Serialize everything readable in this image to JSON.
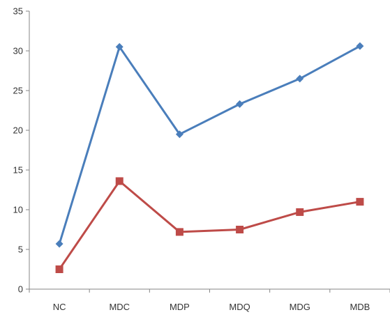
{
  "chart_data": {
    "type": "line",
    "categories": [
      "NC",
      "MDC",
      "MDP",
      "MDQ",
      "MDG",
      "MDB"
    ],
    "series": [
      {
        "values": [
          5.7,
          30.5,
          19.5,
          23.3,
          26.5,
          30.6
        ],
        "color": "#4A7EBB",
        "marker": "diamond"
      },
      {
        "values": [
          2.5,
          13.6,
          7.2,
          7.5,
          9.7,
          11.0
        ],
        "color": "#BE4B48",
        "marker": "square"
      }
    ],
    "ylim": [
      0,
      35
    ],
    "yticks": [
      "0",
      "5",
      "10",
      "15",
      "20",
      "25",
      "30",
      "35"
    ],
    "title": "",
    "xlabel": "",
    "ylabel": "",
    "grid": false,
    "legend": "none",
    "axis_color": "#868686"
  }
}
